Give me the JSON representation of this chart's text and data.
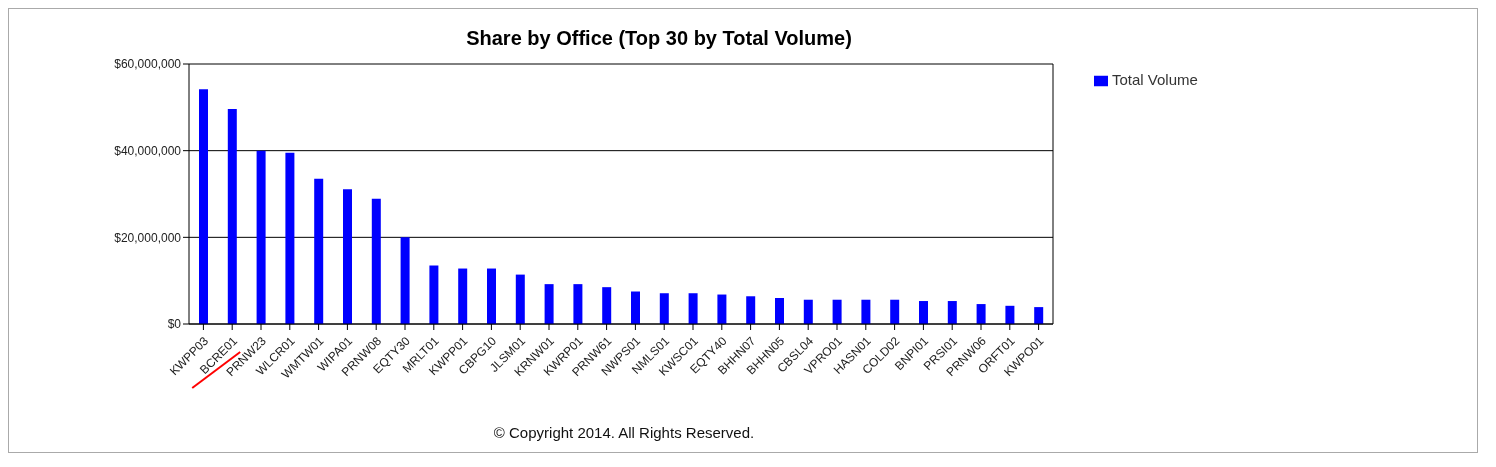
{
  "chart_data": {
    "type": "bar",
    "title": "Share by Office (Top 30 by Total Volume)",
    "categories": [
      "KWPP03",
      "BCRE01",
      "PRNW23",
      "WLCR01",
      "WMTW01",
      "WIPA01",
      "PRNW08",
      "EQTY30",
      "MRLT01",
      "KWPP01",
      "CBPG10",
      "JLSM01",
      "KRNW01",
      "KWRP01",
      "PRNW61",
      "NWPS01",
      "NMLS01",
      "KWSC01",
      "EQTY40",
      "BHHN07",
      "BHHN05",
      "CBSL04",
      "VPRO01",
      "HASN01",
      "COLD02",
      "BNPI01",
      "PRSI01",
      "PRNW06",
      "ORFT01",
      "KWPO01"
    ],
    "series": [
      {
        "name": "Total Volume",
        "color": "#0000ff",
        "values": [
          54200000,
          49600000,
          40000000,
          39500000,
          33500000,
          31100000,
          28900000,
          20000000,
          13500000,
          12800000,
          12800000,
          11400000,
          9200000,
          9200000,
          8500000,
          7500000,
          7100000,
          7100000,
          6800000,
          6400000,
          6000000,
          5600000,
          5600000,
          5600000,
          5600000,
          5300000,
          5300000,
          4600000,
          4200000,
          3900000
        ]
      }
    ],
    "ylim": [
      0,
      60000000
    ],
    "yticks": [
      {
        "value": 0,
        "label": "$0"
      },
      {
        "value": 20000000,
        "label": "$20,000,000"
      },
      {
        "value": 40000000,
        "label": "$40,000,000"
      },
      {
        "value": 60000000,
        "label": "$60,000,000"
      }
    ],
    "grid": "y",
    "legend": "top right",
    "annotations": [
      "© Copyright 2014.  All Rights Reserved."
    ]
  }
}
